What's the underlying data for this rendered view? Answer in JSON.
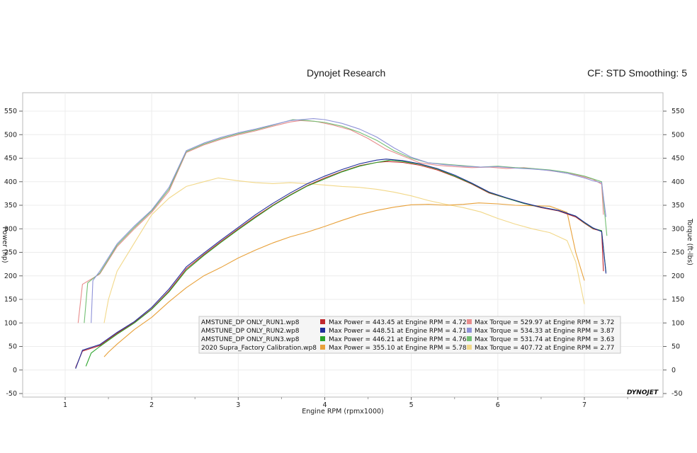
{
  "header": {
    "title": "Dynojet Research",
    "cf_info": "CF: STD Smoothing: 5"
  },
  "brand": "DYNOJET",
  "chart_data": {
    "type": "line",
    "xlabel": "Engine RPM (rpmx1000)",
    "ylabel_left": "Power (hp)",
    "ylabel_right": "Torque (ft-lbs)",
    "xlim": [
      0.55,
      7.5
    ],
    "ylim": [
      -50,
      585
    ],
    "x_ticks": [
      1,
      2,
      3,
      4,
      5,
      6,
      7
    ],
    "y_ticks": [
      -50,
      0,
      50,
      100,
      150,
      200,
      250,
      300,
      350,
      400,
      450,
      500,
      550
    ],
    "grid": true,
    "legend_placement": "bottom-center",
    "series": [
      {
        "name": "AMSTUNE_DP ONLY_RUN1.wp8",
        "stats": [
          "Max Power = 443.45 at Engine RPM = 4.72",
          "Max Torque = 529.97 at Engine RPM = 3.72"
        ],
        "power_color": "#c0282d",
        "torque_color": "#e88c8c",
        "power": {
          "x": [
            1.12,
            1.2,
            1.4,
            1.6,
            1.8,
            2.0,
            2.2,
            2.4,
            2.6,
            2.8,
            3.0,
            3.2,
            3.4,
            3.6,
            3.8,
            4.0,
            4.2,
            4.4,
            4.6,
            4.72,
            4.9,
            5.1,
            5.3,
            5.5,
            5.7,
            5.9,
            6.1,
            6.3,
            6.5,
            6.7,
            6.9,
            7.0,
            7.1,
            7.2,
            7.22
          ],
          "y": [
            5,
            40,
            52,
            78,
            101,
            130,
            168,
            215,
            245,
            273,
            300,
            326,
            350,
            372,
            392,
            408,
            422,
            434,
            441,
            443,
            441,
            435,
            425,
            411,
            395,
            376,
            365,
            354,
            345,
            338,
            325,
            312,
            300,
            295,
            210
          ]
        },
        "torque": {
          "x": [
            1.15,
            1.2,
            1.4,
            1.6,
            1.8,
            2.0,
            2.2,
            2.4,
            2.6,
            2.8,
            3.0,
            3.2,
            3.4,
            3.6,
            3.72,
            3.9,
            4.1,
            4.3,
            4.5,
            4.7,
            4.9,
            5.1,
            5.3,
            5.5,
            5.7,
            5.9,
            6.1,
            6.3,
            6.5,
            6.7,
            6.9,
            7.0,
            7.1,
            7.2,
            7.22
          ],
          "y": [
            100,
            182,
            204,
            262,
            300,
            335,
            380,
            462,
            478,
            490,
            500,
            508,
            518,
            527,
            530,
            528,
            520,
            510,
            492,
            470,
            455,
            440,
            435,
            432,
            430,
            431,
            428,
            430,
            426,
            421,
            415,
            410,
            405,
            395,
            330
          ]
        }
      },
      {
        "name": "AMSTUNE_DP ONLY_RUN2.wp8",
        "stats": [
          "Max Power = 448.51 at Engine RPM = 4.71",
          "Max Torque = 534.33 at Engine RPM = 3.87"
        ],
        "power_color": "#1f2d9a",
        "torque_color": "#8f93d8",
        "power": {
          "x": [
            1.12,
            1.2,
            1.4,
            1.6,
            1.8,
            2.0,
            2.2,
            2.4,
            2.6,
            2.8,
            3.0,
            3.2,
            3.4,
            3.6,
            3.8,
            4.0,
            4.2,
            4.4,
            4.6,
            4.71,
            4.9,
            5.1,
            5.3,
            5.5,
            5.7,
            5.9,
            6.1,
            6.3,
            6.5,
            6.7,
            6.9,
            7.0,
            7.1,
            7.2,
            7.25
          ],
          "y": [
            3,
            42,
            54,
            80,
            103,
            133,
            172,
            219,
            248,
            276,
            303,
            330,
            354,
            376,
            396,
            412,
            426,
            438,
            446,
            448,
            445,
            438,
            428,
            414,
            397,
            378,
            366,
            355,
            346,
            339,
            327,
            314,
            302,
            294,
            205
          ]
        },
        "torque": {
          "x": [
            1.3,
            1.32,
            1.4,
            1.6,
            1.8,
            2.0,
            2.2,
            2.4,
            2.6,
            2.8,
            3.0,
            3.2,
            3.4,
            3.6,
            3.87,
            4.0,
            4.2,
            4.4,
            4.6,
            4.8,
            5.0,
            5.2,
            5.4,
            5.6,
            5.8,
            6.0,
            6.2,
            6.4,
            6.6,
            6.8,
            7.0,
            7.1,
            7.2,
            7.25
          ],
          "y": [
            100,
            190,
            210,
            268,
            306,
            340,
            388,
            466,
            482,
            494,
            504,
            512,
            521,
            530,
            534,
            532,
            524,
            512,
            495,
            472,
            452,
            440,
            436,
            433,
            431,
            432,
            429,
            427,
            424,
            418,
            408,
            402,
            398,
            325
          ]
        }
      },
      {
        "name": "AMSTUNE_DP ONLY_RUN3.wp8",
        "stats": [
          "Max Power = 446.21 at Engine RPM = 4.76",
          "Max Torque = 531.74 at Engine RPM = 3.63"
        ],
        "power_color": "#2aa32a",
        "torque_color": "#73bf73",
        "power": {
          "x": [
            1.24,
            1.3,
            1.4,
            1.6,
            1.8,
            2.0,
            2.2,
            2.4,
            2.6,
            2.8,
            3.0,
            3.2,
            3.4,
            3.6,
            3.8,
            4.0,
            4.2,
            4.4,
            4.6,
            4.76,
            4.9,
            5.1,
            5.3,
            5.5,
            5.7,
            5.9,
            6.1,
            6.3,
            6.5,
            6.7,
            6.9,
            7.0,
            7.1,
            7.2,
            7.25
          ],
          "y": [
            8,
            36,
            50,
            76,
            100,
            129,
            166,
            212,
            243,
            271,
            298,
            324,
            349,
            371,
            391,
            406,
            421,
            433,
            441,
            446,
            443,
            437,
            427,
            412,
            396,
            377,
            365,
            354,
            346,
            339,
            327,
            313,
            301,
            296,
            208
          ]
        },
        "torque": {
          "x": [
            1.22,
            1.26,
            1.4,
            1.6,
            1.8,
            2.0,
            2.2,
            2.4,
            2.6,
            2.8,
            3.0,
            3.2,
            3.4,
            3.63,
            3.8,
            4.0,
            4.2,
            4.4,
            4.6,
            4.8,
            5.0,
            5.2,
            5.4,
            5.6,
            5.8,
            6.0,
            6.2,
            6.4,
            6.6,
            6.8,
            7.0,
            7.1,
            7.2,
            7.26
          ],
          "y": [
            100,
            185,
            206,
            265,
            303,
            338,
            384,
            464,
            480,
            492,
            502,
            510,
            520,
            532,
            530,
            526,
            518,
            505,
            488,
            466,
            450,
            440,
            437,
            434,
            431,
            433,
            430,
            428,
            425,
            420,
            412,
            406,
            400,
            285
          ]
        }
      },
      {
        "name": "2020 Supra_Factory Calibration.wp8",
        "stats": [
          "Max Power = 355.10 at Engine RPM = 5.78",
          "Max Torque = 407.72 at Engine RPM = 2.77"
        ],
        "power_color": "#e8a13a",
        "torque_color": "#f2d889",
        "power": {
          "x": [
            1.45,
            1.5,
            1.6,
            1.8,
            2.0,
            2.2,
            2.4,
            2.6,
            2.8,
            3.0,
            3.2,
            3.4,
            3.6,
            3.8,
            4.0,
            4.2,
            4.4,
            4.6,
            4.8,
            5.0,
            5.2,
            5.4,
            5.6,
            5.78,
            6.0,
            6.2,
            6.4,
            6.6,
            6.8,
            6.9,
            7.0
          ],
          "y": [
            28,
            38,
            55,
            86,
            112,
            145,
            175,
            200,
            218,
            238,
            255,
            270,
            283,
            293,
            305,
            318,
            330,
            339,
            346,
            351,
            352,
            350,
            352,
            355,
            353,
            350,
            349,
            348,
            335,
            250,
            190
          ]
        },
        "torque": {
          "x": [
            1.45,
            1.5,
            1.6,
            1.8,
            2.0,
            2.2,
            2.4,
            2.6,
            2.77,
            3.0,
            3.2,
            3.4,
            3.6,
            3.8,
            4.0,
            4.2,
            4.4,
            4.6,
            4.8,
            5.0,
            5.2,
            5.4,
            5.6,
            5.8,
            6.0,
            6.2,
            6.4,
            6.6,
            6.8,
            6.9,
            7.0
          ],
          "y": [
            100,
            150,
            210,
            270,
            330,
            365,
            390,
            400,
            408,
            402,
            398,
            396,
            398,
            396,
            393,
            390,
            388,
            384,
            378,
            370,
            360,
            352,
            345,
            336,
            322,
            310,
            300,
            292,
            275,
            230,
            140
          ]
        }
      }
    ]
  }
}
